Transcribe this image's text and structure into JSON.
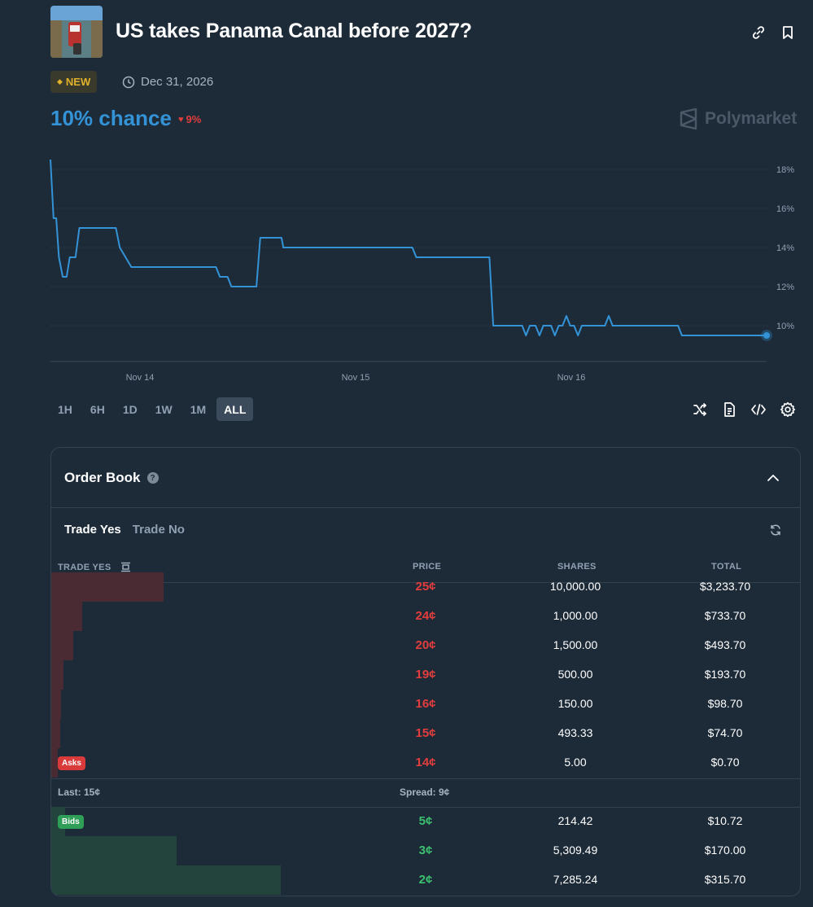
{
  "header": {
    "title": "US takes Panama Canal before 2027?",
    "badge": "NEW",
    "end_date": "Dec 31, 2026"
  },
  "odds": {
    "chance": "10% chance",
    "change": "9%",
    "brand": "Polymarket"
  },
  "chart_data": {
    "type": "line",
    "title": "",
    "xlabel": "",
    "ylabel": "",
    "x_ticks": [
      "Nov 14",
      "Nov 15",
      "Nov 16"
    ],
    "y_ticks": [
      "18%",
      "16%",
      "14%",
      "12%",
      "10%"
    ],
    "ylim": [
      8.5,
      18.5
    ],
    "series": [
      {
        "name": "Yes",
        "color": "#3393d6",
        "points": [
          [
            0,
            18.5
          ],
          [
            0.8,
            15.5
          ],
          [
            1.5,
            15.5
          ],
          [
            2.2,
            13.5
          ],
          [
            3.2,
            12.5
          ],
          [
            4.2,
            12.5
          ],
          [
            5,
            13.5
          ],
          [
            6.5,
            13.5
          ],
          [
            7.5,
            15
          ],
          [
            17,
            15
          ],
          [
            18,
            14
          ],
          [
            21,
            13
          ],
          [
            43,
            13
          ],
          [
            44,
            12.5
          ],
          [
            46,
            12.5
          ],
          [
            47,
            12
          ],
          [
            53.5,
            12
          ],
          [
            54.5,
            14.5
          ],
          [
            60,
            14.5
          ],
          [
            60.5,
            14
          ],
          [
            94,
            14
          ],
          [
            95,
            13.5
          ],
          [
            114,
            13.5
          ],
          [
            115,
            10
          ],
          [
            122.5,
            10
          ],
          [
            123.5,
            9.5
          ],
          [
            124.5,
            10
          ],
          [
            126,
            10
          ],
          [
            127,
            9.5
          ],
          [
            128,
            10
          ],
          [
            130,
            10
          ],
          [
            131,
            9.5
          ],
          [
            132,
            10
          ],
          [
            133,
            10
          ],
          [
            134,
            10.5
          ],
          [
            135,
            10
          ],
          [
            136,
            10
          ],
          [
            137,
            9.5
          ],
          [
            138,
            10
          ],
          [
            144,
            10
          ],
          [
            145,
            10.5
          ],
          [
            146,
            10
          ],
          [
            163,
            10
          ],
          [
            164,
            9.5
          ],
          [
            186,
            9.5
          ]
        ]
      }
    ]
  },
  "ranges": [
    "1H",
    "6H",
    "1D",
    "1W",
    "1M",
    "ALL"
  ],
  "active_range": "ALL",
  "order_book": {
    "title": "Order Book",
    "help": "?",
    "tabs": [
      "Trade Yes",
      "Trade No"
    ],
    "columns": {
      "side": "TRADE YES",
      "price": "PRICE",
      "shares": "SHARES",
      "total": "TOTAL"
    },
    "asks": [
      {
        "price": "25¢",
        "shares": "10,000.00",
        "total": "$3,233.70",
        "depth": 0.43
      },
      {
        "price": "24¢",
        "shares": "1,000.00",
        "total": "$733.70",
        "depth": 0.12
      },
      {
        "price": "20¢",
        "shares": "1,500.00",
        "total": "$493.70",
        "depth": 0.085
      },
      {
        "price": "19¢",
        "shares": "500.00",
        "total": "$193.70",
        "depth": 0.048
      },
      {
        "price": "16¢",
        "shares": "150.00",
        "total": "$98.70",
        "depth": 0.037
      },
      {
        "price": "15¢",
        "shares": "493.33",
        "total": "$74.70",
        "depth": 0.033
      },
      {
        "price": "14¢",
        "shares": "5.00",
        "total": "$0.70",
        "depth": 0.025
      }
    ],
    "asks_label": "Asks",
    "last": "Last: 15¢",
    "spread": "Spread: 9¢",
    "bids_label": "Bids",
    "bids": [
      {
        "price": "5¢",
        "shares": "214.42",
        "total": "$10.72",
        "depth": 0.052
      },
      {
        "price": "3¢",
        "shares": "5,309.49",
        "total": "$170.00",
        "depth": 0.48
      },
      {
        "price": "2¢",
        "shares": "7,285.24",
        "total": "$315.70",
        "depth": 0.88
      }
    ]
  },
  "colors": {
    "accent": "#3393d6",
    "ask": "#e23d3d",
    "bid": "#3cc070",
    "ask_bar": "#4a2a33",
    "bid_bar": "#23443d"
  }
}
